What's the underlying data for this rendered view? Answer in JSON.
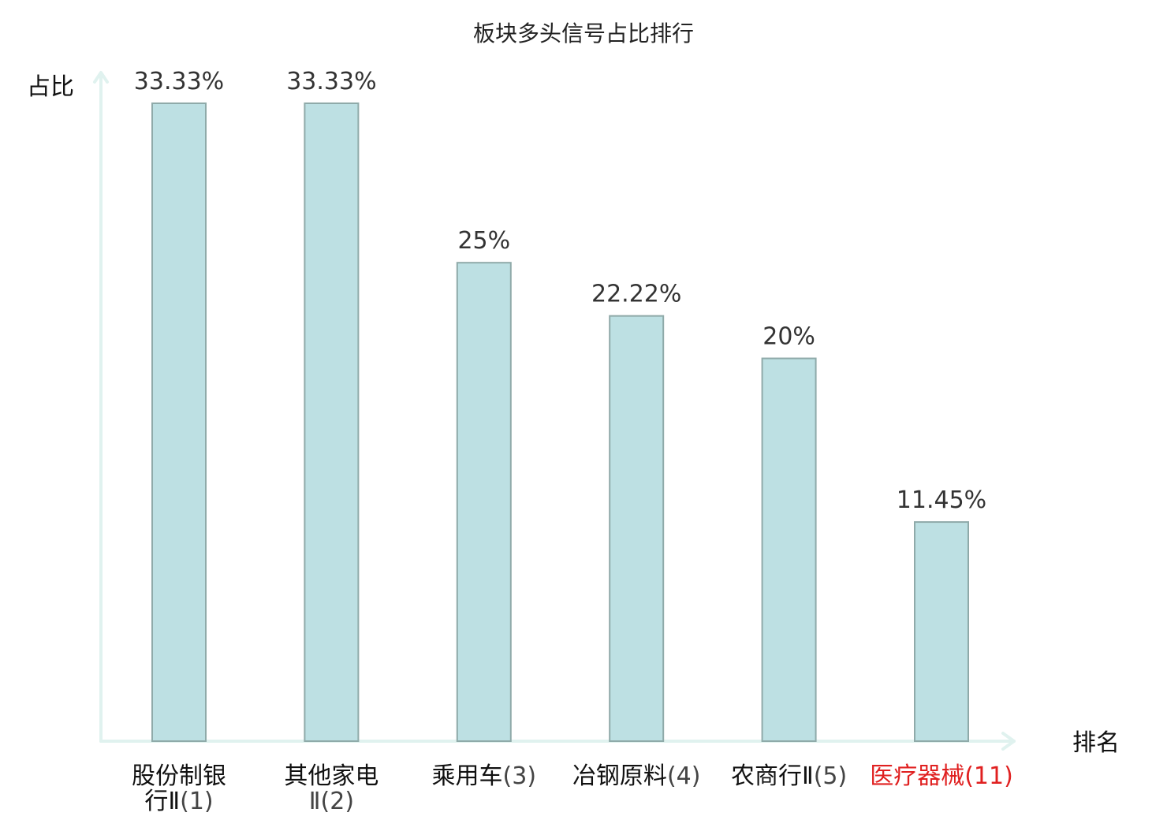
{
  "chart_data": {
    "type": "bar",
    "title": "板块多头信号占比排行",
    "ylabel": "占比",
    "xlabel": "排名",
    "ylim": [
      0,
      33.33
    ],
    "grid": false,
    "legend": "none",
    "categories": [
      {
        "lines": [
          "股份制银",
          "行Ⅱ",
          "(1)"
        ],
        "highlight": false
      },
      {
        "lines": [
          "其他家电",
          "Ⅱ",
          "(2)"
        ],
        "highlight": false
      },
      {
        "lines": [
          "乘用车",
          "(3)"
        ],
        "highlight": false
      },
      {
        "lines": [
          "冶钢原料",
          "(4)"
        ],
        "highlight": false
      },
      {
        "lines": [
          "农商行Ⅱ",
          "(5)"
        ],
        "highlight": false
      },
      {
        "lines": [
          "医疗器械",
          "(11)"
        ],
        "highlight": true
      }
    ],
    "values": [
      33.33,
      33.33,
      25,
      22.22,
      20,
      11.45
    ],
    "value_labels": [
      "33.33%",
      "33.33%",
      "25%",
      "22.22%",
      "20%",
      "11.45%"
    ],
    "colors": {
      "bar_fill": "#bde0e3",
      "bar_stroke": "#8faaa9",
      "axis": "#e0f2ef",
      "label": "#111111",
      "number": "#444444",
      "highlight": "#e02020"
    }
  }
}
